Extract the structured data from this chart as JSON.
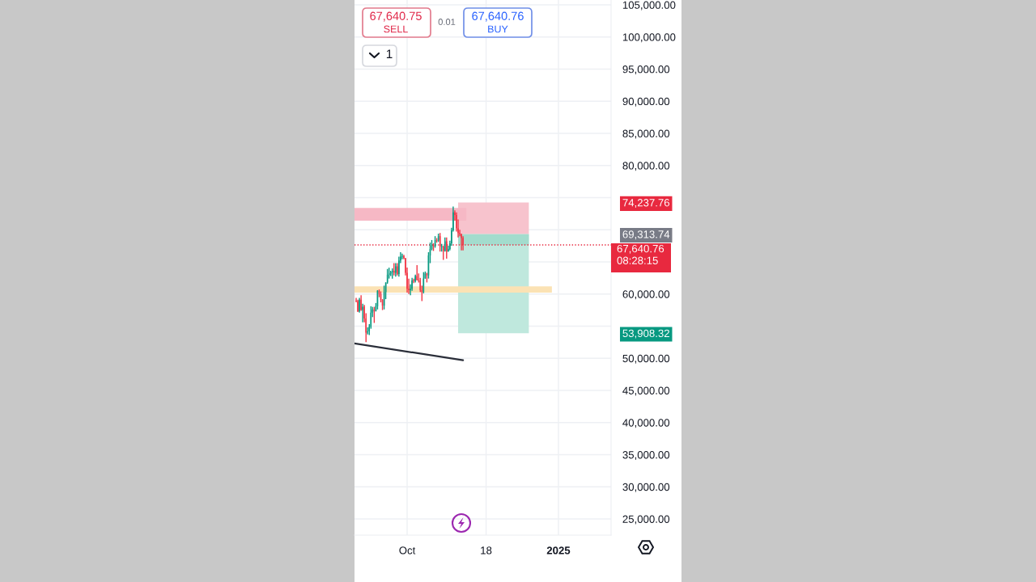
{
  "chart_data": {
    "type": "candlestick",
    "xlim": [
      "2024-08-30",
      "2025-02-02"
    ],
    "xticks": [
      {
        "value": "2024-10-01",
        "label": "Oct"
      },
      {
        "value": "2024-11-18",
        "label": "18"
      },
      {
        "value": "2025-01-01",
        "label": "2025"
      }
    ],
    "ylim": [
      22480,
      105750
    ],
    "yticks": [
      {
        "value": 25000,
        "label": "25,000.00"
      },
      {
        "value": 30000,
        "label": "30,000.00"
      },
      {
        "value": 35000,
        "label": "35,000.00"
      },
      {
        "value": 40000,
        "label": "40,000.00"
      },
      {
        "value": 45000,
        "label": "45,000.00"
      },
      {
        "value": 50000,
        "label": "50,000.00"
      },
      {
        "value": 53908.32,
        "label": "53,908.32"
      },
      {
        "value": 55000,
        "label": null
      },
      {
        "value": 60000,
        "label": "60,000.00"
      },
      {
        "value": 65000,
        "label": null
      },
      {
        "value": 69313.74,
        "label": "69,313.74"
      },
      {
        "value": 70000,
        "label": null
      },
      {
        "value": 74237.76,
        "label": "74,237.76"
      },
      {
        "value": 75000,
        "label": null
      },
      {
        "value": 80000,
        "label": "80,000.00"
      },
      {
        "value": 85000,
        "label": "85,000.00"
      },
      {
        "value": 90000,
        "label": "90,000.00"
      },
      {
        "value": 95000,
        "label": "95,000.00"
      },
      {
        "value": 100000,
        "label": "100,000.00"
      },
      {
        "value": 105000,
        "label": "105,000.00"
      }
    ],
    "grid": true,
    "series": [
      {
        "type": "area",
        "x": [
          "2024-11-01",
          "2024-12-14"
        ],
        "values": [
          null,
          null
        ],
        "upper": [
          74237.76,
          74237.76
        ],
        "lower": [
          69313.74,
          69313.74
        ],
        "color": "#f7c3cd"
      },
      {
        "type": "area",
        "x": [
          "2024-11-01",
          "2024-12-14"
        ],
        "values": [
          null,
          null
        ],
        "upper": [
          69313.74,
          69313.74
        ],
        "lower": [
          53908.32,
          53908.32
        ],
        "color": "#bfe8dd"
      },
      {
        "type": "area",
        "x": [
          "2024-11-01",
          "2024-12-14"
        ],
        "values": [
          null,
          null
        ],
        "upper": [
          69313.74,
          69313.74
        ],
        "lower": [
          67640.76,
          67640.76
        ],
        "color": "#a3dccd"
      },
      {
        "type": "area",
        "x": [
          "2024-08-30",
          "2024-12-28"
        ],
        "values": [
          null,
          null
        ],
        "upper": [
          61200,
          61200
        ],
        "lower": [
          60200,
          60200
        ],
        "color": "#fbe2b4"
      },
      {
        "type": "area",
        "x": [
          "2024-08-30",
          "2024-11-06"
        ],
        "values": [
          null,
          null
        ],
        "upper": [
          73400,
          73400
        ],
        "lower": [
          71400,
          71400
        ],
        "color": "#f6b8c5"
      },
      {
        "type": "line",
        "x": [
          "2024-08-30",
          "2024-11-04"
        ],
        "values": [
          52300,
          49700
        ],
        "color": "#2a2e39"
      },
      {
        "x": [
          "2024-08-31",
          "2024-09-01",
          "2024-09-02",
          "2024-09-03",
          "2024-09-04",
          "2024-09-05",
          "2024-09-06",
          "2024-09-07",
          "2024-09-08",
          "2024-09-09",
          "2024-09-10",
          "2024-09-11",
          "2024-09-12",
          "2024-09-13",
          "2024-09-14",
          "2024-09-15",
          "2024-09-16",
          "2024-09-17",
          "2024-09-18",
          "2024-09-19",
          "2024-09-20",
          "2024-09-21",
          "2024-09-22",
          "2024-09-23",
          "2024-09-24",
          "2024-09-25",
          "2024-09-26",
          "2024-09-27",
          "2024-09-28",
          "2024-09-29",
          "2024-09-30",
          "2024-10-01",
          "2024-10-02",
          "2024-10-03",
          "2024-10-04",
          "2024-10-05",
          "2024-10-06",
          "2024-10-07",
          "2024-10-08",
          "2024-10-09",
          "2024-10-10",
          "2024-10-11",
          "2024-10-12",
          "2024-10-13",
          "2024-10-14",
          "2024-10-15",
          "2024-10-16",
          "2024-10-17",
          "2024-10-18",
          "2024-10-19",
          "2024-10-20",
          "2024-10-21",
          "2024-10-22",
          "2024-10-23",
          "2024-10-24",
          "2024-10-25",
          "2024-10-26",
          "2024-10-27",
          "2024-10-28",
          "2024-10-29",
          "2024-10-30",
          "2024-10-31",
          "2024-11-01",
          "2024-11-02",
          "2024-11-03",
          "2024-11-04"
        ],
        "ohlc": [
          [
            59000,
            59400,
            58700,
            58900
          ],
          [
            58900,
            59100,
            57200,
            57300
          ],
          [
            57300,
            59400,
            57100,
            59100
          ],
          [
            59100,
            59800,
            57400,
            57500
          ],
          [
            57500,
            58500,
            55600,
            58000
          ],
          [
            58000,
            58300,
            55600,
            56200
          ],
          [
            56200,
            57000,
            52500,
            54000
          ],
          [
            54000,
            54800,
            53700,
            54200
          ],
          [
            54200,
            55300,
            53600,
            54900
          ],
          [
            54900,
            58100,
            54600,
            57100
          ],
          [
            57100,
            58000,
            56400,
            57600
          ],
          [
            57600,
            58000,
            55500,
            57300
          ],
          [
            57300,
            58600,
            57300,
            58100
          ],
          [
            58100,
            60600,
            57600,
            60500
          ],
          [
            60500,
            60700,
            59500,
            60000
          ],
          [
            60000,
            60400,
            58700,
            59100
          ],
          [
            59100,
            59200,
            57500,
            58200
          ],
          [
            58200,
            61300,
            57600,
            60300
          ],
          [
            60300,
            61800,
            59200,
            61800
          ],
          [
            61800,
            63900,
            61600,
            63000
          ],
          [
            63000,
            64100,
            62400,
            63200
          ],
          [
            63200,
            63600,
            62800,
            63400
          ],
          [
            63400,
            64000,
            62400,
            63600
          ],
          [
            63600,
            64800,
            62900,
            63300
          ],
          [
            63300,
            64800,
            62700,
            64300
          ],
          [
            64300,
            64800,
            62900,
            63100
          ],
          [
            63100,
            65800,
            62700,
            65200
          ],
          [
            65200,
            66500,
            64800,
            65800
          ],
          [
            65800,
            66300,
            65400,
            65900
          ],
          [
            65900,
            66100,
            65400,
            65600
          ],
          [
            65600,
            65600,
            62900,
            63300
          ],
          [
            63300,
            64100,
            60200,
            60800
          ],
          [
            60800,
            62400,
            60000,
            60600
          ],
          [
            60600,
            61500,
            59800,
            60800
          ],
          [
            60800,
            62500,
            60500,
            62100
          ],
          [
            62100,
            62400,
            61700,
            62000
          ],
          [
            62000,
            63000,
            61800,
            62800
          ],
          [
            62800,
            64500,
            62100,
            62200
          ],
          [
            62200,
            63200,
            61800,
            62100
          ],
          [
            62100,
            62500,
            60300,
            60600
          ],
          [
            60600,
            61300,
            58900,
            60300
          ],
          [
            60300,
            63400,
            60100,
            62400
          ],
          [
            62400,
            63500,
            62400,
            63200
          ],
          [
            63200,
            63300,
            61800,
            62900
          ],
          [
            62900,
            66500,
            62400,
            66000
          ],
          [
            66000,
            68000,
            64800,
            67000
          ],
          [
            67000,
            68400,
            66800,
            67600
          ],
          [
            67600,
            67900,
            66700,
            67400
          ],
          [
            67400,
            69000,
            67200,
            68400
          ],
          [
            68400,
            68700,
            68000,
            68300
          ],
          [
            68300,
            69400,
            68100,
            69000
          ],
          [
            69000,
            69500,
            66600,
            67400
          ],
          [
            67300,
            67800,
            66600,
            67400
          ],
          [
            67400,
            67500,
            65300,
            66700
          ],
          [
            66700,
            68800,
            66600,
            68200
          ],
          [
            68200,
            68800,
            65500,
            66600
          ],
          [
            66600,
            67500,
            66600,
            67000
          ],
          [
            67000,
            68300,
            66800,
            67900
          ],
          [
            67900,
            70300,
            67500,
            69900
          ],
          [
            69900,
            73600,
            69700,
            72700
          ],
          [
            72700,
            73000,
            71400,
            72300
          ],
          [
            72300,
            72700,
            69700,
            70200
          ],
          [
            70200,
            71600,
            68800,
            69500
          ],
          [
            69500,
            70000,
            69000,
            69300
          ],
          [
            69300,
            69400,
            66800,
            68700
          ],
          [
            68700,
            69000,
            66800,
            67640.76
          ]
        ],
        "colors": [
          "#f23645",
          "#f23645",
          "#089981",
          "#f23645",
          "#089981",
          "#f23645",
          "#f23645",
          "#089981",
          "#089981",
          "#089981",
          "#089981",
          "#f23645",
          "#089981",
          "#089981",
          "#f23645",
          "#f23645",
          "#f23645",
          "#089981",
          "#089981",
          "#089981",
          "#089981",
          "#089981",
          "#089981",
          "#f23645",
          "#089981",
          "#f23645",
          "#089981",
          "#089981",
          "#089981",
          "#f23645",
          "#f23645",
          "#f23645",
          "#f23645",
          "#089981",
          "#089981",
          "#f23645",
          "#089981",
          "#f23645",
          "#f23645",
          "#f23645",
          "#f23645",
          "#089981",
          "#089981",
          "#f23645",
          "#089981",
          "#089981",
          "#089981",
          "#f23645",
          "#089981",
          "#f23645",
          "#089981",
          "#f23645",
          "#089981",
          "#f23645",
          "#089981",
          "#f23645",
          "#089981",
          "#089981",
          "#089981",
          "#089981",
          "#f23645",
          "#f23645",
          "#f23645",
          "#f23645",
          "#f23645",
          "#f23645"
        ]
      }
    ],
    "ref_lines": [
      {
        "axis": "y",
        "value": 67640.76,
        "label": "67,640.76\n08:28:15",
        "color": "#e8293f",
        "line_style": "dotted"
      }
    ],
    "annotations": [
      "67,640.75",
      "SELL",
      "0.01",
      "67,640.76",
      "BUY",
      "1"
    ]
  }
}
